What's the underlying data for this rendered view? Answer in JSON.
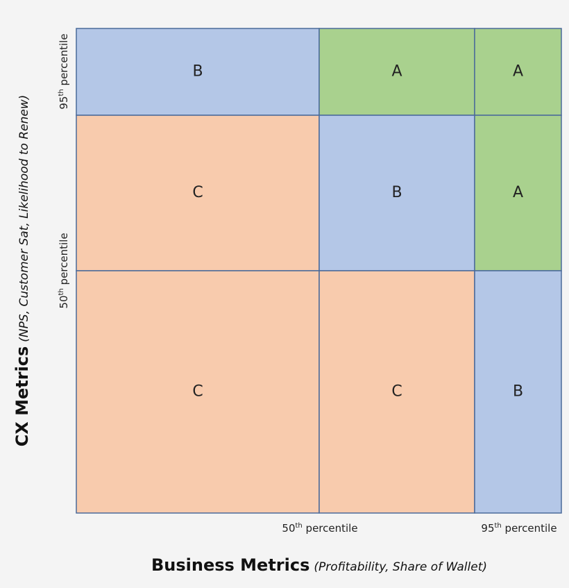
{
  "grid": {
    "rows": [
      [
        "B",
        "A",
        "A"
      ],
      [
        "C",
        "B",
        "A"
      ],
      [
        "C",
        "C",
        "B"
      ]
    ]
  },
  "x_axis": {
    "title": "Business Metrics",
    "subtitle": "(Profitability, Share of Wallet)",
    "ticks": [
      {
        "number": "50",
        "suffix": "th",
        "rest": " percentile"
      },
      {
        "number": "95",
        "suffix": "th",
        "rest": " percentile"
      }
    ]
  },
  "y_axis": {
    "title": "CX Metrics",
    "subtitle": "(NPS, Customer Sat, Likelihood to Renew)",
    "ticks": [
      {
        "number": "95",
        "suffix": "th",
        "rest": " percentile"
      },
      {
        "number": "50",
        "suffix": "th",
        "rest": " percentile"
      }
    ]
  }
}
